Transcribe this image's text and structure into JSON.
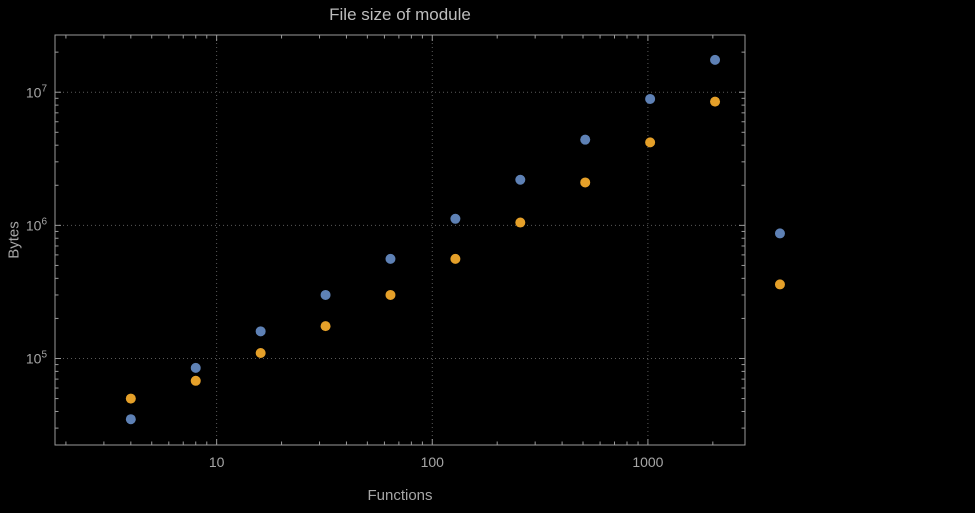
{
  "chart_data": {
    "type": "scatter",
    "title": "File size of module",
    "xlabel": "Functions",
    "ylabel": "Bytes",
    "x_scale": "log",
    "y_scale": "log",
    "grid": true,
    "legend": false,
    "x_ticks": [
      10,
      100,
      1000
    ],
    "x_tick_labels": [
      "10",
      "100",
      "1000"
    ],
    "y_ticks": [
      100000,
      1000000,
      10000000
    ],
    "y_tick_exponents": [
      5,
      6,
      7
    ],
    "xlim": [
      1.78,
      2820
    ],
    "ylim": [
      22400,
      26900000
    ],
    "x": [
      4,
      8,
      16,
      32,
      64,
      128,
      256,
      512,
      1024,
      2048,
      4096
    ],
    "series": [
      {
        "name": "blue",
        "color": "#5E81B5",
        "values": [
          35000,
          85000,
          160000,
          300000,
          560000,
          1120000,
          2200000,
          4400000,
          8900000,
          17500000,
          870000
        ]
      },
      {
        "name": "orange",
        "color": "#E5A029",
        "values": [
          50000,
          68000,
          110000,
          175000,
          300000,
          560000,
          1050000,
          2100000,
          4200000,
          8500000,
          360000
        ]
      }
    ],
    "colors": {
      "background": "#000000",
      "frame": "#9a9a9a",
      "grid": "#5a5a5a",
      "title": "#bdbdbd",
      "text": "#a6a6a6"
    }
  }
}
